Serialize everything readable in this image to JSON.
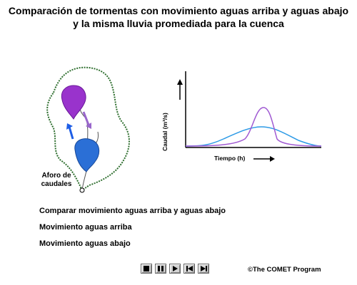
{
  "title": {
    "line1": "Comparación de tormentas con movimiento aguas arriba y aguas abajo",
    "line2": "y la misma lluvia promediada para la cuenca"
  },
  "diagram": {
    "gauge_label_line1": "Aforo de",
    "gauge_label_line2": "caudales",
    "basin_outline_color": "#2e6e2e",
    "upstream_storm_color": "#9933cc",
    "downstream_storm_color": "#2b6fd6",
    "upward_arrow_color": "#1e5ee6",
    "downward_arrow_color": "#9966cc"
  },
  "hydrograph": {
    "ylabel": "Caudal (m³/s)",
    "xlabel": "Tiempo (h)",
    "upstream_curve_color": "#a05ad2",
    "downstream_curve_color": "#2c9ae6"
  },
  "menu": {
    "item1": "Comparar movimiento aguas arriba y aguas abajo",
    "item2": "Movimiento aguas arriba",
    "item3": "Movimiento aguas abajo"
  },
  "controls": {
    "stop_icon": "stop-icon",
    "pause_icon": "pause-icon",
    "play_icon": "play-icon",
    "rewind_icon": "skip-back-icon",
    "end_icon": "skip-forward-icon"
  },
  "copyright": "©The COMET Program"
}
